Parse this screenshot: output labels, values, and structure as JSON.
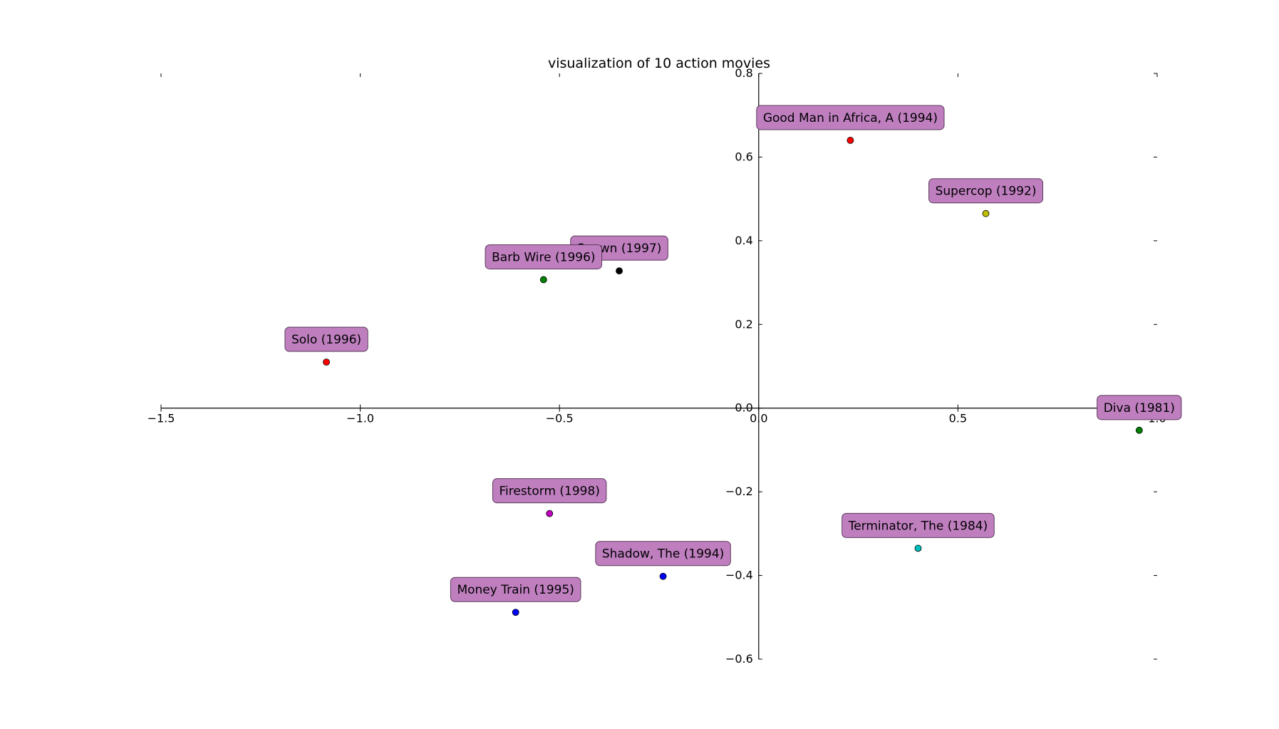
{
  "chart_data": {
    "type": "scatter",
    "title": "visualization of 10 action movies",
    "xlabel": "",
    "ylabel": "",
    "xlim": [
      -1.5,
      1.0
    ],
    "ylim": [
      -0.6,
      0.8
    ],
    "xticks": [
      -1.5,
      -1.0,
      -0.5,
      0.0,
      0.5,
      1.0
    ],
    "yticks": [
      -0.6,
      -0.4,
      -0.2,
      0.0,
      0.2,
      0.4,
      0.6,
      0.8
    ],
    "xtick_labels": [
      "−1.5",
      "−1.0",
      "−0.5",
      "0.0",
      "0.5",
      "1.0"
    ],
    "ytick_labels": [
      "−0.6",
      "−0.4",
      "−0.2",
      "0.0",
      "0.2",
      "0.4",
      "0.6",
      "0.8"
    ],
    "grid": false,
    "label_box_color": "#bf7fbf",
    "points": [
      {
        "label": "Good Man in Africa, A (1994)",
        "x": 0.23,
        "y": 0.64,
        "color": "#ff0000"
      },
      {
        "label": "Supercop (1992)",
        "x": 0.57,
        "y": 0.465,
        "color": "#bfbf00"
      },
      {
        "label": "Spawn (1997)",
        "x": -0.35,
        "y": 0.328,
        "color": "#000000"
      },
      {
        "label": "Barb Wire (1996)",
        "x": -0.54,
        "y": 0.307,
        "color": "#008000"
      },
      {
        "label": "Solo (1996)",
        "x": -1.085,
        "y": 0.11,
        "color": "#ff0000"
      },
      {
        "label": "Diva (1981)",
        "x": 0.955,
        "y": -0.053,
        "color": "#008000"
      },
      {
        "label": "Firestorm (1998)",
        "x": -0.525,
        "y": -0.252,
        "color": "#bf00bf"
      },
      {
        "label": "Terminator, The (1984)",
        "x": 0.4,
        "y": -0.335,
        "color": "#00bfbf"
      },
      {
        "label": "Shadow, The (1994)",
        "x": -0.24,
        "y": -0.402,
        "color": "#0000ff"
      },
      {
        "label": "Money Train (1995)",
        "x": -0.61,
        "y": -0.488,
        "color": "#0000ff"
      }
    ]
  }
}
